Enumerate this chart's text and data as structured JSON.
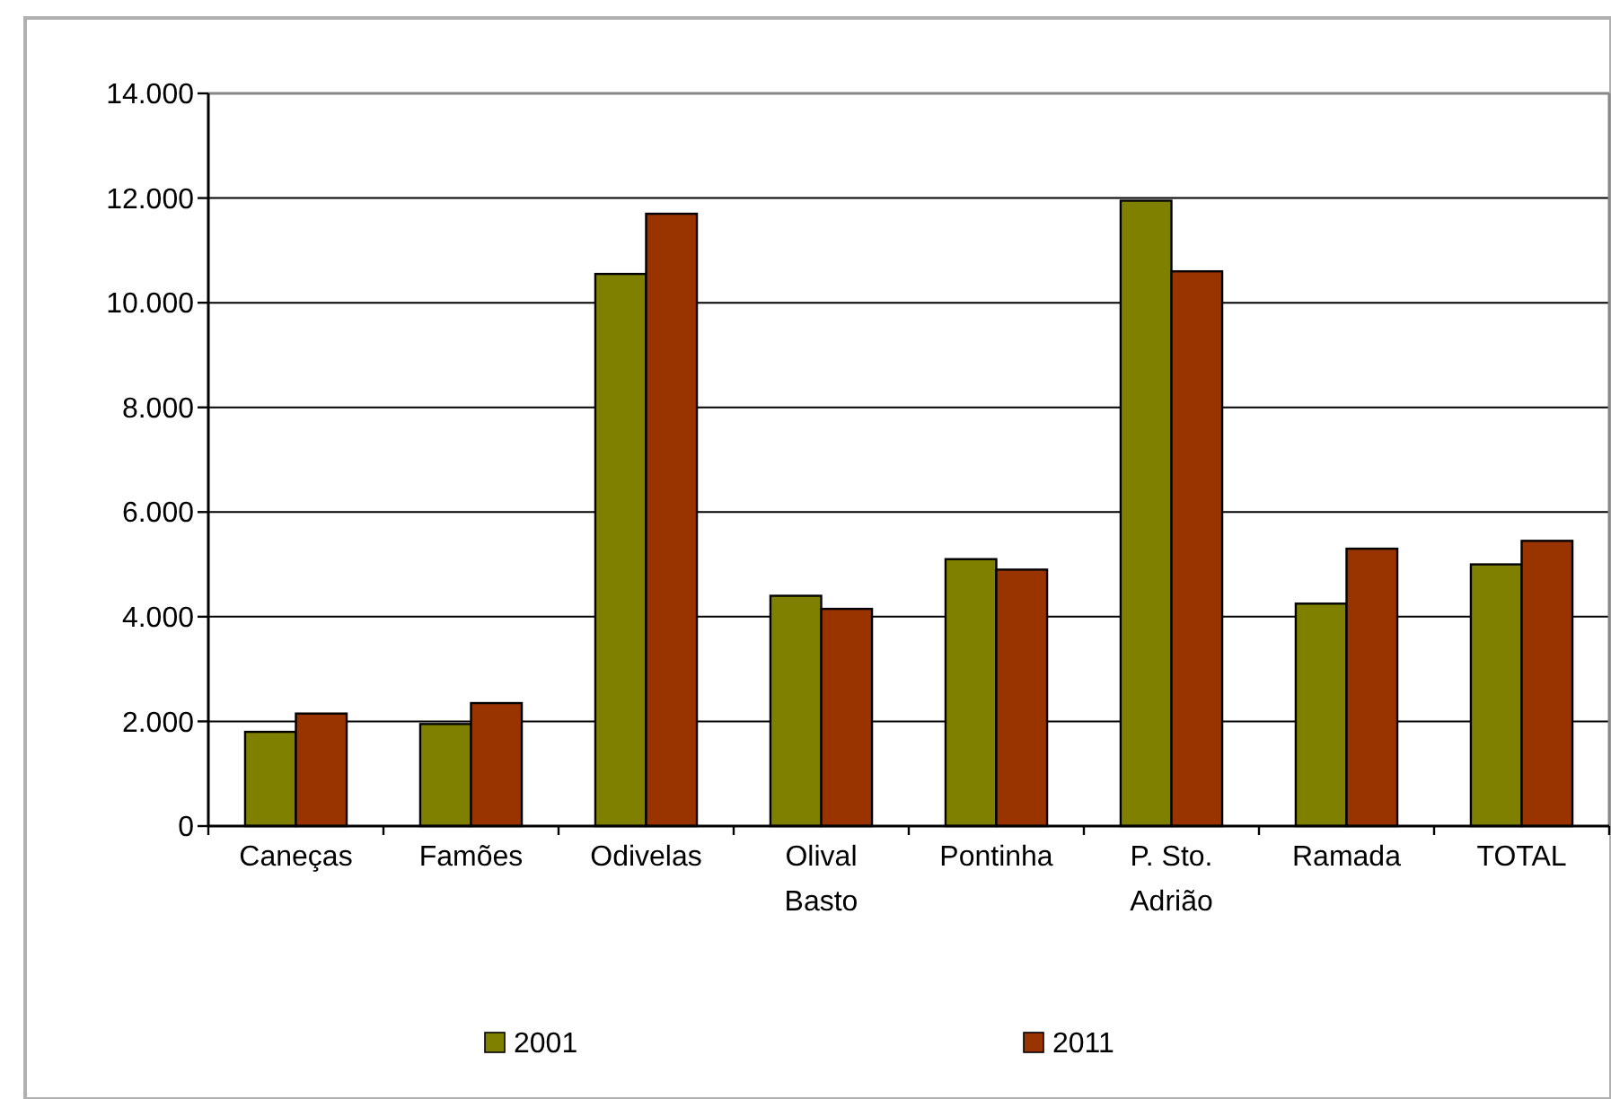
{
  "chart_data": {
    "type": "bar",
    "categories": [
      "Caneças",
      "Famões",
      "Odivelas",
      "Olival Basto",
      "Pontinha",
      "P. Sto. Adrião",
      "Ramada",
      "TOTAL"
    ],
    "series": [
      {
        "name": "2001",
        "color": "#808000",
        "values": [
          1800,
          1950,
          10550,
          4400,
          5100,
          11950,
          4250,
          5000
        ]
      },
      {
        "name": "2011",
        "color": "#993300",
        "values": [
          2150,
          2350,
          11700,
          4150,
          4900,
          10600,
          5300,
          5450
        ]
      }
    ],
    "ylim": [
      0,
      14000
    ],
    "yticks": [
      0,
      {
        "value": 2000,
        "label": "2.000"
      },
      {
        "value": 4000,
        "label": "4.000"
      },
      {
        "value": 6000,
        "label": "6.000"
      },
      {
        "value": 8000,
        "label": "8.000"
      },
      {
        "value": 10000,
        "label": "10.000"
      },
      {
        "value": 12000,
        "label": "12.000"
      },
      {
        "value": 14000,
        "label": "14.000"
      }
    ],
    "grid": "y",
    "legend": "bottom"
  }
}
